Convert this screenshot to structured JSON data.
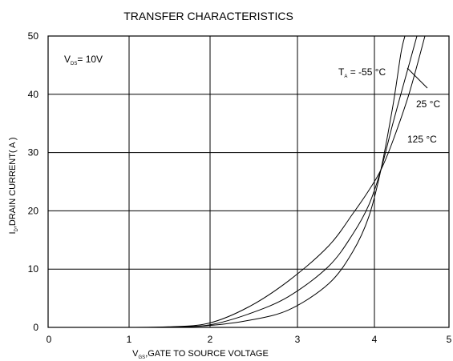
{
  "chart_data": {
    "type": "line",
    "title": "TRANSFER CHARACTERISTICS",
    "xlabel_main": "V",
    "xlabel_sub": "GS",
    "xlabel_rest": ",GATE TO SOURCE VOLTAGE",
    "ylabel_main": "I",
    "ylabel_sub": "D",
    "ylabel_rest": ",DRAIN CURRENT( A )",
    "xlim": [
      0,
      5
    ],
    "ylim": [
      0,
      50
    ],
    "x_ticks": [
      "0",
      "1",
      "2",
      "3",
      "4",
      "5"
    ],
    "y_ticks": [
      "0",
      "10",
      "20",
      "30",
      "40",
      "50"
    ],
    "grid": true,
    "condition": {
      "main": "V",
      "sub": "DS",
      "rest": "= 10V"
    },
    "series": [
      {
        "name": "Tₐ = -55 °C",
        "label_main": "T",
        "label_sub": "A",
        "label_rest": " = -55 °C",
        "points": [
          [
            1.0,
            0
          ],
          [
            1.5,
            0.03
          ],
          [
            2.0,
            0.3
          ],
          [
            2.5,
            1.2
          ],
          [
            3.0,
            3.0
          ],
          [
            3.5,
            7.5
          ],
          [
            3.8,
            13.0
          ],
          [
            4.0,
            19.0
          ],
          [
            4.15,
            27.0
          ],
          [
            4.3,
            38.0
          ],
          [
            4.4,
            47.0
          ],
          [
            4.45,
            50.0
          ]
        ]
      },
      {
        "name": "25 °C",
        "label_main": "25 °C",
        "label_sub": "",
        "label_rest": "",
        "points": [
          [
            1.0,
            0
          ],
          [
            1.5,
            0.05
          ],
          [
            2.0,
            0.4
          ],
          [
            2.5,
            2.3
          ],
          [
            3.0,
            5.3
          ],
          [
            3.5,
            10.5
          ],
          [
            3.8,
            16.0
          ],
          [
            4.0,
            21.0
          ],
          [
            4.15,
            27.0
          ],
          [
            4.3,
            35.0
          ],
          [
            4.5,
            45.0
          ],
          [
            4.6,
            50.0
          ]
        ]
      },
      {
        "name": "125 °C",
        "label_main": "125 °C",
        "label_sub": "",
        "label_rest": "",
        "points": [
          [
            1.0,
            0
          ],
          [
            1.5,
            0.1
          ],
          [
            2.0,
            0.7
          ],
          [
            2.5,
            3.5
          ],
          [
            3.0,
            8.0
          ],
          [
            3.5,
            14.0
          ],
          [
            3.8,
            19.5
          ],
          [
            4.0,
            23.5
          ],
          [
            4.15,
            27.0
          ],
          [
            4.3,
            32.0
          ],
          [
            4.5,
            40.0
          ],
          [
            4.7,
            50.0
          ]
        ]
      }
    ]
  }
}
